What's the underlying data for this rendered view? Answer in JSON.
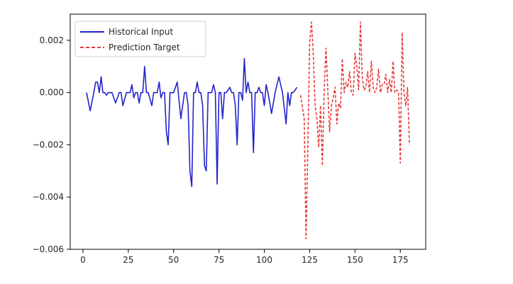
{
  "chart_data": {
    "type": "line",
    "xlim": [
      -7,
      189
    ],
    "ylim": [
      -0.006,
      0.003
    ],
    "xticks": [
      0,
      25,
      50,
      75,
      100,
      125,
      150,
      175
    ],
    "xtick_labels": [
      "0",
      "25",
      "50",
      "75",
      "100",
      "125",
      "150",
      "175"
    ],
    "yticks": [
      -0.006,
      -0.004,
      -0.002,
      0.0,
      0.002
    ],
    "ytick_labels": [
      "−0.006",
      "−0.004",
      "−0.002",
      "0.000",
      "0.002"
    ],
    "grid": false,
    "legend_position": "upper-left",
    "series": [
      {
        "name": "Historical Input",
        "color": "#2323cc",
        "style": "solid",
        "x": [
          2,
          4,
          6,
          7,
          8,
          9,
          10,
          11,
          12,
          13,
          14,
          16,
          18,
          20,
          21,
          22,
          24,
          25,
          26,
          27,
          28,
          29,
          30,
          31,
          32,
          33,
          34,
          35,
          36,
          38,
          39,
          40,
          41,
          42,
          43,
          44,
          45,
          46,
          47,
          48,
          50,
          52,
          54,
          56,
          57,
          58,
          59,
          60,
          61,
          62,
          63,
          64,
          65,
          66,
          67,
          68,
          69,
          70,
          71,
          72,
          73,
          74,
          75,
          76,
          77,
          78,
          79,
          80,
          81,
          82,
          83,
          84,
          85,
          86,
          87,
          88,
          89,
          90,
          91,
          92,
          93,
          94,
          95,
          96,
          97,
          98,
          99,
          100,
          101,
          102,
          103,
          104,
          106,
          108,
          110,
          112,
          113,
          114,
          115,
          116,
          117,
          118
        ],
        "y": [
          0.0,
          -0.0007,
          0.0,
          0.0004,
          0.0004,
          0.0,
          0.0006,
          0.0,
          0.0,
          -0.0001,
          0.0,
          0.0,
          -0.0004,
          0.0,
          0.0,
          -0.0005,
          0.0,
          0.0,
          0.0,
          0.0003,
          -0.0002,
          0.0,
          0.0,
          -0.0004,
          0.0,
          0.0,
          0.001,
          0.0,
          0.0,
          -0.0005,
          0.0,
          0.0,
          0.0,
          0.0004,
          -0.0002,
          0.0,
          0.0,
          -0.0015,
          -0.002,
          0.0,
          0.0,
          0.0004,
          -0.001,
          0.0,
          0.0,
          -0.0005,
          -0.003,
          -0.0036,
          0.0,
          0.0,
          0.0004,
          0.0,
          0.0,
          -0.0005,
          -0.0028,
          -0.003,
          0.0,
          0.0,
          0.0,
          0.0003,
          0.0,
          -0.0035,
          0.0,
          0.0,
          -0.001,
          0.0,
          0.0,
          0.0001,
          0.0002,
          0.0,
          0.0,
          -0.0005,
          -0.002,
          0.0,
          0.0,
          -0.0003,
          0.0013,
          0.0,
          0.0004,
          0.0,
          0.0,
          -0.0023,
          0.0,
          0.0,
          0.0002,
          0.0,
          0.0,
          -0.0005,
          0.0003,
          0.0,
          -0.0004,
          -0.0008,
          0.0,
          0.0006,
          0.0,
          -0.0012,
          0.0,
          -0.0005,
          0.0,
          0.0,
          0.0001,
          0.0002
        ]
      },
      {
        "name": "Prediction Target",
        "color": "#e83a3a",
        "style": "dashed",
        "x": [
          120,
          122,
          123,
          124,
          125,
          126,
          127,
          128,
          129,
          130,
          131,
          132,
          133,
          134,
          135,
          136,
          137,
          138,
          139,
          140,
          141,
          142,
          143,
          144,
          145,
          146,
          147,
          148,
          149,
          150,
          151,
          152,
          153,
          154,
          155,
          156,
          157,
          158,
          159,
          160,
          161,
          162,
          163,
          164,
          165,
          166,
          167,
          168,
          169,
          170,
          171,
          172,
          173,
          174,
          175,
          176,
          177,
          178,
          179,
          180
        ],
        "y": [
          -0.0001,
          -0.001,
          -0.0056,
          -0.002,
          0.0019,
          0.0027,
          0.0015,
          -0.0005,
          -0.001,
          -0.0021,
          -0.0005,
          -0.0028,
          0.0001,
          0.0017,
          0.0001,
          -0.0015,
          -0.0005,
          -0.0002,
          0.0002,
          -0.0012,
          -0.0004,
          -0.0006,
          0.0013,
          0.0,
          0.0004,
          0.0002,
          0.0008,
          0.0,
          -0.0001,
          0.0015,
          0.001,
          0.0001,
          0.0027,
          0.0006,
          0.0001,
          0.0002,
          0.0008,
          0.0,
          0.0012,
          0.0002,
          0.0,
          0.0002,
          0.0009,
          0.0,
          0.0003,
          0.0003,
          0.0007,
          0.0,
          0.0005,
          0.0,
          0.0012,
          0.0,
          0.0001,
          0.0,
          -0.0027,
          0.0023,
          0.0,
          -0.0005,
          0.0002,
          -0.002
        ]
      }
    ]
  }
}
